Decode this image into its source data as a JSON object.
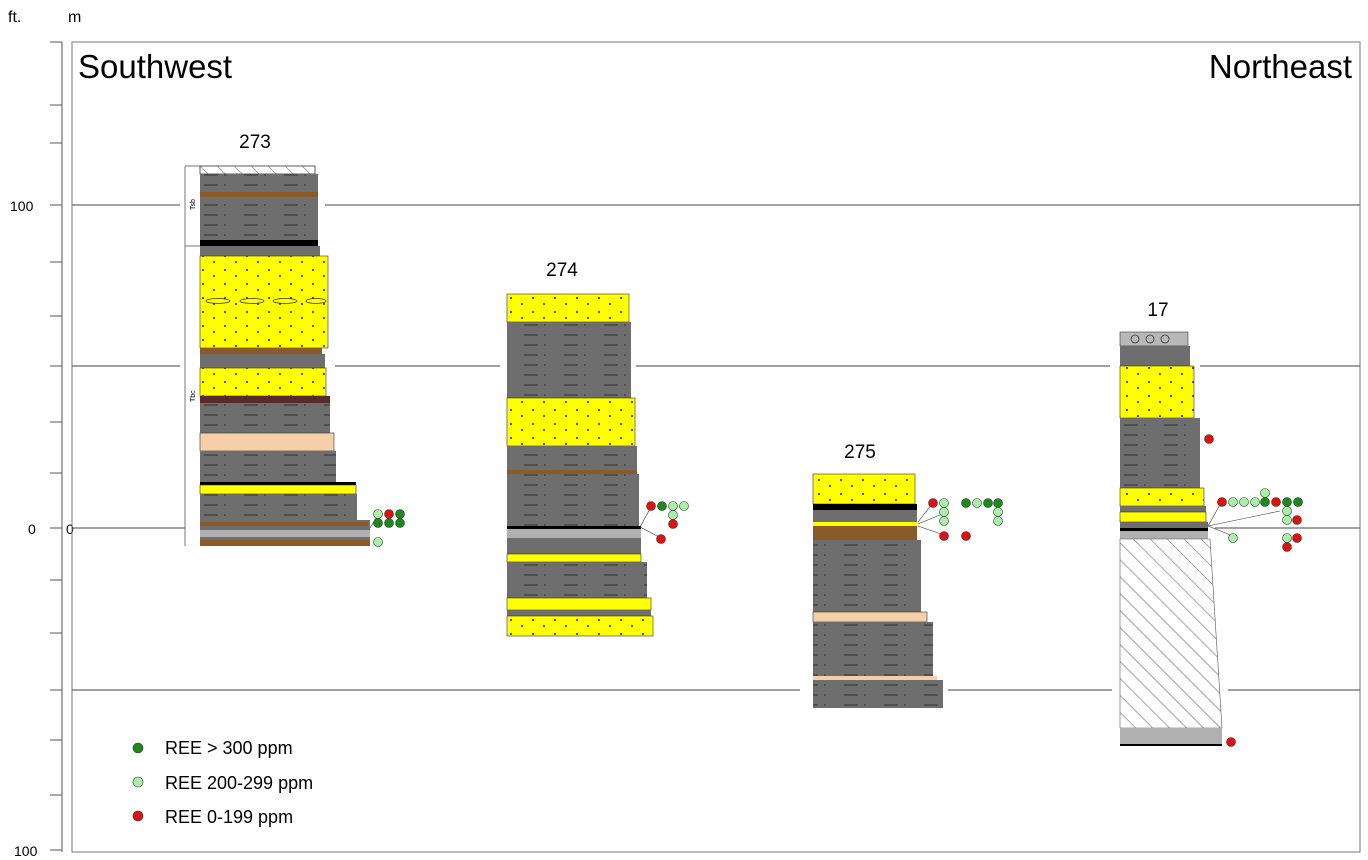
{
  "units": {
    "left": "ft.",
    "right": "m"
  },
  "directions": {
    "left": "Southwest",
    "right": "Northeast"
  },
  "axis_labels": {
    "feet_top": "100",
    "feet_zero": "0",
    "feet_bottom": "100",
    "meters_zero": "0"
  },
  "sections": [
    {
      "id": "273",
      "label": "273",
      "formations": [
        "Tsb",
        "Tbc"
      ]
    },
    {
      "id": "274",
      "label": "274"
    },
    {
      "id": "275",
      "label": "275"
    },
    {
      "id": "17",
      "label": "17"
    }
  ],
  "legend": [
    {
      "label": "REE > 300 ppm",
      "color": "#1a8a1a"
    },
    {
      "label": "REE 200-299 ppm",
      "color": "#a8f0a8"
    },
    {
      "label": "REE 0-199 ppm",
      "color": "#e01010"
    }
  ],
  "colors": {
    "mudstone": "#6e6e6e",
    "sandstone": "#ffff00",
    "coal": "#000000",
    "tan_bed": "#f5cfa8",
    "brown_bed": "#8b5a2b"
  }
}
